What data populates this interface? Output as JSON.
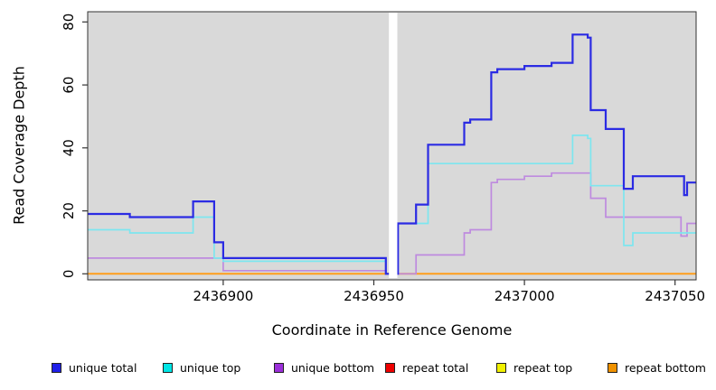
{
  "figure": {
    "x_axis_label": "Coordinate in Reference Genome",
    "y_axis_label": "Read Coverage Depth"
  },
  "chart_data": {
    "type": "line",
    "subtype": "step-after",
    "title": "",
    "xlabel": "Coordinate in Reference Genome",
    "ylabel": "Read Coverage Depth",
    "xlim": [
      2436855,
      2437057
    ],
    "ylim": [
      0,
      80
    ],
    "x_ticks": [
      2436900,
      2436950,
      2437000,
      2437050
    ],
    "y_ticks": [
      0,
      20,
      40,
      60,
      80
    ],
    "grid": false,
    "plot_background": "#D9D9D9",
    "border_color": "#333333",
    "gap_region": {
      "x_start": 2436955,
      "x_end": 2436957.8,
      "color": "#FFFFFF"
    },
    "legend_position": "bottom",
    "series": [
      {
        "name": "repeat total",
        "color": "#E01010",
        "width": 1.5,
        "points": [
          [
            2436855,
            0
          ],
          [
            2437057,
            0
          ]
        ]
      },
      {
        "name": "repeat top",
        "color": "#F0F000",
        "width": 1.5,
        "points": [
          [
            2436855,
            0
          ],
          [
            2437057,
            0
          ]
        ]
      },
      {
        "name": "repeat bottom",
        "color": "#FF9E1B",
        "width": 2,
        "points": [
          [
            2436855,
            0
          ],
          [
            2437057,
            0
          ]
        ]
      },
      {
        "name": "unique bottom",
        "color": "#BE8ADF",
        "width": 1.7,
        "points": [
          [
            2436855,
            5
          ],
          [
            2436900,
            1
          ],
          [
            2436954,
            0
          ],
          [
            2436964,
            6
          ],
          [
            2436980,
            13
          ],
          [
            2436982,
            14
          ],
          [
            2436989,
            29
          ],
          [
            2436991,
            30
          ],
          [
            2437000,
            31
          ],
          [
            2437009,
            32
          ],
          [
            2437022,
            24
          ],
          [
            2437027,
            18
          ],
          [
            2437052,
            12
          ],
          [
            2437054,
            16
          ],
          [
            2437057,
            16
          ]
        ]
      },
      {
        "name": "unique top",
        "color": "#7DE6EF",
        "width": 1.7,
        "points": [
          [
            2436855,
            14
          ],
          [
            2436869,
            13
          ],
          [
            2436890,
            18
          ],
          [
            2436897,
            5
          ],
          [
            2436900,
            4
          ],
          [
            2436954,
            0
          ],
          [
            2436958,
            16
          ],
          [
            2436968,
            35
          ],
          [
            2437016,
            44
          ],
          [
            2437021,
            43
          ],
          [
            2437022,
            28
          ],
          [
            2437033,
            9
          ],
          [
            2437036,
            13
          ],
          [
            2437057,
            13
          ]
        ]
      },
      {
        "name": "unique total",
        "color": "#2B2BE3",
        "width": 2.2,
        "points": [
          [
            2436855,
            19
          ],
          [
            2436869,
            18
          ],
          [
            2436890,
            23
          ],
          [
            2436897,
            10
          ],
          [
            2436900,
            5
          ],
          [
            2436954,
            0
          ],
          [
            2436958,
            16
          ],
          [
            2436964,
            22
          ],
          [
            2436968,
            41
          ],
          [
            2436980,
            48
          ],
          [
            2436982,
            49
          ],
          [
            2436989,
            64
          ],
          [
            2436991,
            65
          ],
          [
            2437000,
            66
          ],
          [
            2437009,
            67
          ],
          [
            2437016,
            76
          ],
          [
            2437021,
            75
          ],
          [
            2437022,
            52
          ],
          [
            2437027,
            46
          ],
          [
            2437033,
            27
          ],
          [
            2437036,
            31
          ],
          [
            2437053,
            25
          ],
          [
            2437054,
            29
          ],
          [
            2437057,
            29
          ]
        ]
      }
    ]
  },
  "legend": {
    "items": [
      {
        "label": "unique total",
        "color": "#1F1FE8"
      },
      {
        "label": "unique top",
        "color": "#00E5E5"
      },
      {
        "label": "unique bottom",
        "color": "#9B2FD9"
      },
      {
        "label": "repeat total",
        "color": "#EE0000"
      },
      {
        "label": "repeat top",
        "color": "#F0F000"
      },
      {
        "label": "repeat bottom",
        "color": "#F09200"
      }
    ]
  }
}
